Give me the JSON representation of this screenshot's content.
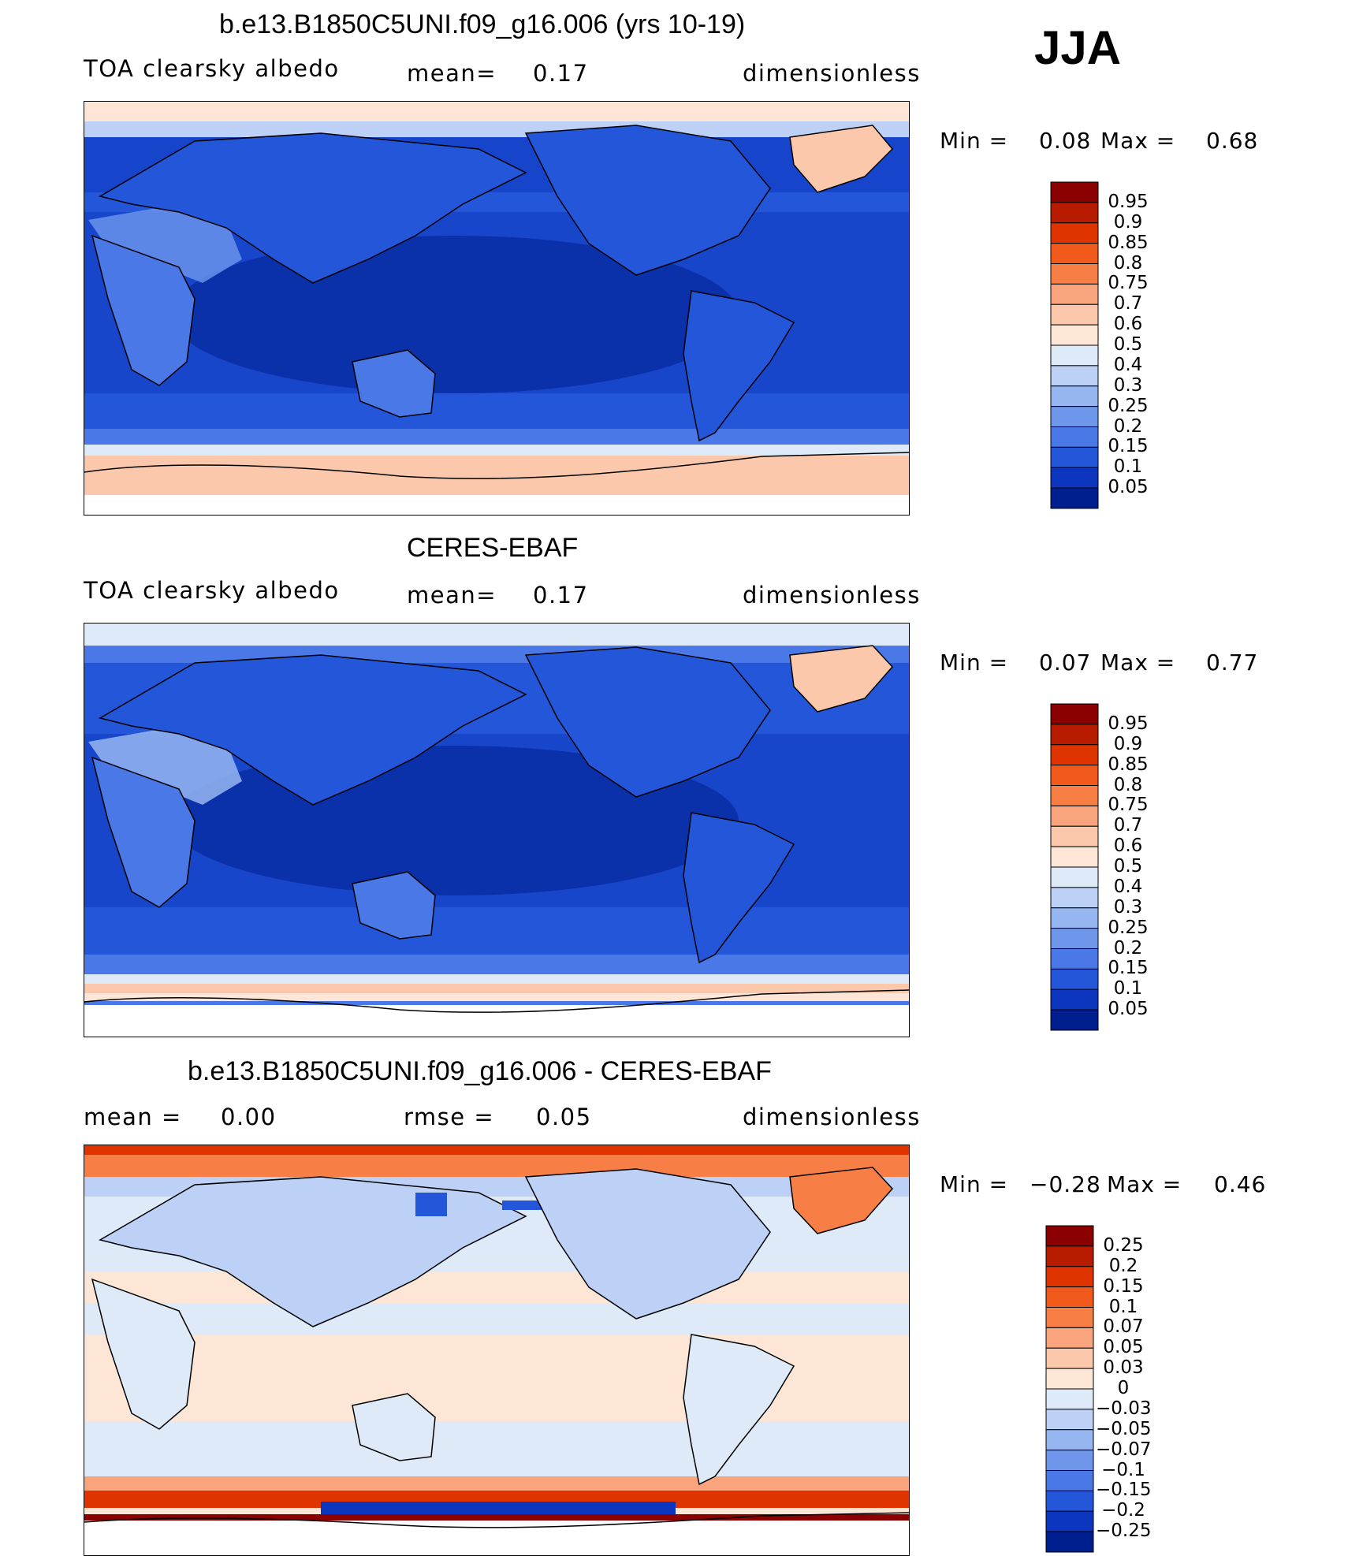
{
  "season": "JJA",
  "chart_data": [
    {
      "type": "heatmap",
      "title": "b.e13.B1850C5UNI.f09_g16.006 (yrs 10-19)",
      "left_label": "TOA clearsky albedo",
      "mean_label": "mean=",
      "mean_value": "0.17",
      "units": "dimensionless",
      "min_label": "Min =",
      "min_value": "0.08",
      "max_label": "Max =",
      "max_value": "0.68",
      "colorbar": {
        "labels": [
          "0.95",
          "0.9",
          "0.85",
          "0.8",
          "0.75",
          "0.7",
          "0.6",
          "0.5",
          "0.4",
          "0.3",
          "0.25",
          "0.2",
          "0.15",
          "0.1",
          "0.05"
        ],
        "colors": [
          "#8b0000",
          "#b81c00",
          "#e03400",
          "#f25a1c",
          "#f77f46",
          "#f9a47c",
          "#fbc8ab",
          "#fde6d6",
          "#dfeaf8",
          "#bcd1f5",
          "#96b6f2",
          "#6e97ec",
          "#4a78e6",
          "#2356d9",
          "#0d36be",
          "#001f8f"
        ]
      }
    },
    {
      "type": "heatmap",
      "title": "CERES-EBAF",
      "left_label": "TOA clearsky albedo",
      "mean_label": "mean=",
      "mean_value": "0.17",
      "units": "dimensionless",
      "min_label": "Min =",
      "min_value": "0.07",
      "max_label": "Max =",
      "max_value": "0.77",
      "colorbar": {
        "labels": [
          "0.95",
          "0.9",
          "0.85",
          "0.8",
          "0.75",
          "0.7",
          "0.6",
          "0.5",
          "0.4",
          "0.3",
          "0.25",
          "0.2",
          "0.15",
          "0.1",
          "0.05"
        ],
        "colors": [
          "#8b0000",
          "#b81c00",
          "#e03400",
          "#f25a1c",
          "#f77f46",
          "#f9a47c",
          "#fbc8ab",
          "#fde6d6",
          "#dfeaf8",
          "#bcd1f5",
          "#96b6f2",
          "#6e97ec",
          "#4a78e6",
          "#2356d9",
          "#0d36be",
          "#001f8f"
        ]
      }
    },
    {
      "type": "heatmap",
      "title": "b.e13.B1850C5UNI.f09_g16.006 - CERES-EBAF",
      "mean_label": "mean =",
      "mean_value": "0.00",
      "rmse_label": "rmse =",
      "rmse_value": "0.05",
      "units": "dimensionless",
      "min_label": "Min =",
      "min_value": "−0.28",
      "max_label": "Max =",
      "max_value": "0.46",
      "colorbar": {
        "labels": [
          "0.25",
          "0.2",
          "0.15",
          "0.1",
          "0.07",
          "0.05",
          "0.03",
          "0",
          "−0.03",
          "−0.05",
          "−0.07",
          "−0.1",
          "−0.15",
          "−0.2",
          "−0.25"
        ],
        "colors": [
          "#8b0000",
          "#b81c00",
          "#e03400",
          "#f25a1c",
          "#f77f46",
          "#f9a47c",
          "#fbc8ab",
          "#fde6d6",
          "#dfeaf8",
          "#bcd1f5",
          "#96b6f2",
          "#6e97ec",
          "#4a78e6",
          "#2356d9",
          "#0d36be",
          "#001f8f"
        ]
      }
    }
  ]
}
